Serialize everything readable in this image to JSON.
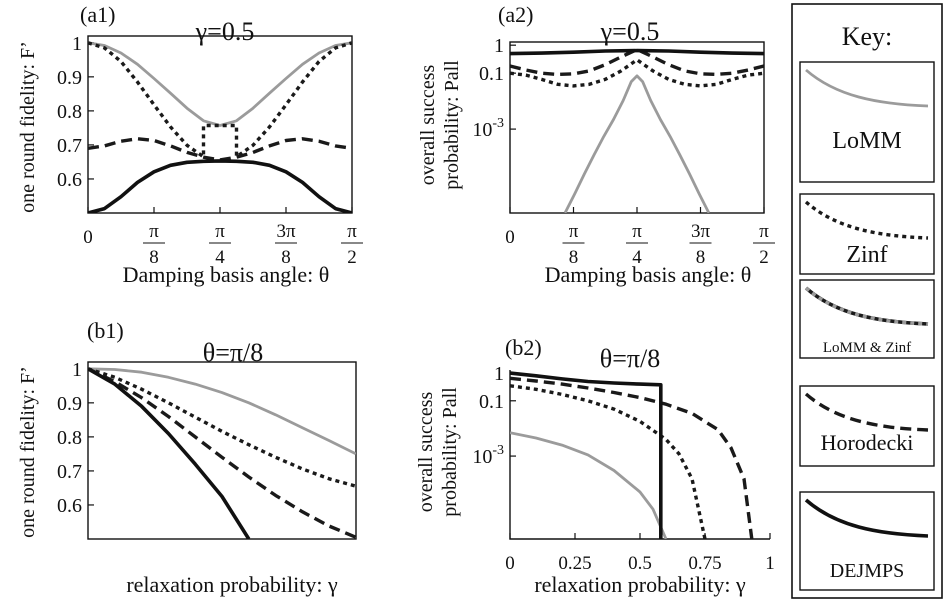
{
  "colors": {
    "LoMM": "#9b9b9b",
    "Zinf": "#1a1a1a",
    "Horodecki": "#1a1a1a",
    "DEJMPS": "#111111",
    "axis": "#111111"
  },
  "key": {
    "title": "Key:",
    "entries": [
      {
        "label": "LoMM",
        "style": "gray-solid"
      },
      {
        "label": "Zinf",
        "style": "dotted"
      },
      {
        "label": "LoMM & Zinf",
        "style": "gray-dotted"
      },
      {
        "label": "Horodecki",
        "style": "dashed"
      },
      {
        "label": "DEJMPS",
        "style": "black-solid"
      }
    ]
  },
  "chart_data": [
    {
      "panel": "(a1)",
      "type": "line",
      "title": "γ=0.5",
      "xlabel": "Damping basis angle: θ",
      "ylabel": "one round fidelity: F’",
      "xlim": [
        0,
        1.5708
      ],
      "ylim": [
        0.5,
        1.02
      ],
      "x_ticks": [
        {
          "v": 0,
          "num": "0",
          "den": ""
        },
        {
          "v": 0.3927,
          "num": "π",
          "den": "8"
        },
        {
          "v": 0.7854,
          "num": "π",
          "den": "4"
        },
        {
          "v": 1.1781,
          "num": "3π",
          "den": "8"
        },
        {
          "v": 1.5708,
          "num": "π",
          "den": "2"
        }
      ],
      "y_ticks": [
        {
          "v": 1,
          "label": "1"
        },
        {
          "v": 0.9,
          "label": "0.9"
        },
        {
          "v": 0.8,
          "label": "0.8"
        },
        {
          "v": 0.7,
          "label": "0.7"
        },
        {
          "v": 0.6,
          "label": "0.6"
        }
      ],
      "series": [
        {
          "name": "LoMM",
          "style": "gray-solid",
          "x": [
            0,
            0.0982,
            0.1963,
            0.2945,
            0.3927,
            0.4909,
            0.589,
            0.6872,
            0.7854,
            0.8836,
            0.9817,
            1.0799,
            1.1781,
            1.2763,
            1.3744,
            1.4726,
            1.5708
          ],
          "y": [
            1,
            0.992,
            0.97,
            0.937,
            0.895,
            0.852,
            0.808,
            0.771,
            0.757,
            0.771,
            0.808,
            0.852,
            0.895,
            0.937,
            0.97,
            0.992,
            1
          ]
        },
        {
          "name": "Zinf",
          "style": "dotted",
          "x": [
            0,
            0.0982,
            0.1963,
            0.2945,
            0.3927,
            0.4909,
            0.589,
            0.687,
            0.6872,
            0.7854,
            0.8836,
            0.8838,
            0.9817,
            1.0799,
            1.1781,
            1.2763,
            1.3744,
            1.4726,
            1.5708
          ],
          "y": [
            1,
            0.985,
            0.945,
            0.885,
            0.818,
            0.753,
            0.699,
            0.665,
            0.757,
            0.757,
            0.757,
            0.665,
            0.699,
            0.753,
            0.818,
            0.885,
            0.945,
            0.985,
            1
          ]
        },
        {
          "name": "Horodecki",
          "style": "dashed",
          "x": [
            0,
            0.0982,
            0.1963,
            0.2945,
            0.3927,
            0.4909,
            0.589,
            0.6872,
            0.7854,
            0.8836,
            0.9817,
            1.0799,
            1.1781,
            1.2763,
            1.3744,
            1.4726,
            1.5708
          ],
          "y": [
            0.69,
            0.697,
            0.711,
            0.718,
            0.713,
            0.697,
            0.678,
            0.664,
            0.656,
            0.664,
            0.678,
            0.697,
            0.713,
            0.718,
            0.711,
            0.697,
            0.69
          ]
        },
        {
          "name": "DEJMPS",
          "style": "black-solid",
          "x": [
            0,
            0.0982,
            0.1963,
            0.2945,
            0.3927,
            0.4909,
            0.589,
            0.6872,
            0.7854,
            0.8836,
            0.9817,
            1.0799,
            1.1781,
            1.2763,
            1.3744,
            1.4726,
            1.5708
          ],
          "y": [
            0.5,
            0.513,
            0.548,
            0.59,
            0.621,
            0.64,
            0.649,
            0.652,
            0.653,
            0.652,
            0.649,
            0.64,
            0.621,
            0.59,
            0.548,
            0.513,
            0.5
          ]
        }
      ]
    },
    {
      "panel": "(a2)",
      "type": "line",
      "title": "γ=0.5",
      "xlabel": "Damping basis angle: θ",
      "ylabel": "overall success probability: Pall",
      "ylabel_lines": [
        "overall success",
        "probability: Pall"
      ],
      "yscale": "log",
      "xlim": [
        0,
        1.5708
      ],
      "ylim": [
        1e-06,
        1.3
      ],
      "x_ticks": [
        {
          "v": 0,
          "num": "0",
          "den": ""
        },
        {
          "v": 0.3927,
          "num": "π",
          "den": "8"
        },
        {
          "v": 0.7854,
          "num": "π",
          "den": "4"
        },
        {
          "v": 1.1781,
          "num": "3π",
          "den": "8"
        },
        {
          "v": 1.5708,
          "num": "π",
          "den": "2"
        }
      ],
      "y_ticks": [
        {
          "v": 1,
          "label": "1",
          "sup": ""
        },
        {
          "v": 0.1,
          "label": "0.1",
          "sup": ""
        },
        {
          "v": 0.001,
          "label": "10",
          "sup": "-3"
        }
      ],
      "series": [
        {
          "name": "LoMM",
          "style": "gray-solid",
          "x": [
            0.34,
            0.4,
            0.46,
            0.52,
            0.58,
            0.64,
            0.7,
            0.75,
            0.7854,
            0.82,
            0.87,
            0.93,
            0.99,
            1.05,
            1.11,
            1.17,
            1.23
          ],
          "y": [
            1e-06,
            4.8e-06,
            2.5e-05,
            0.00012,
            0.00055,
            0.0022,
            0.0105,
            0.05,
            0.08,
            0.05,
            0.0105,
            0.0022,
            0.00055,
            0.00012,
            2.5e-05,
            4.8e-06,
            1e-06
          ]
        },
        {
          "name": "Zinf",
          "style": "dotted",
          "x": [
            0,
            0.0982,
            0.1963,
            0.2945,
            0.3927,
            0.4909,
            0.589,
            0.6872,
            0.7854,
            0.8836,
            0.9817,
            1.0799,
            1.1781,
            1.2763,
            1.3744,
            1.4726,
            1.5708
          ],
          "y": [
            0.1,
            0.085,
            0.06,
            0.04,
            0.035,
            0.04,
            0.06,
            0.12,
            0.3,
            0.12,
            0.06,
            0.04,
            0.035,
            0.04,
            0.06,
            0.085,
            0.1
          ]
        },
        {
          "name": "Horodecki",
          "style": "dashed",
          "x": [
            0,
            0.0982,
            0.1963,
            0.2945,
            0.3927,
            0.4909,
            0.589,
            0.6872,
            0.7854,
            0.8836,
            0.9817,
            1.0799,
            1.1781,
            1.2763,
            1.3744,
            1.4726,
            1.5708
          ],
          "y": [
            0.18,
            0.13,
            0.1,
            0.09,
            0.095,
            0.12,
            0.2,
            0.38,
            0.7,
            0.38,
            0.2,
            0.12,
            0.095,
            0.09,
            0.1,
            0.13,
            0.18
          ]
        },
        {
          "name": "DEJMPS",
          "style": "black-solid",
          "x": [
            0,
            0.1963,
            0.3927,
            0.589,
            0.7854,
            0.9817,
            1.1781,
            1.3744,
            1.5708
          ],
          "y": [
            0.5,
            0.52,
            0.56,
            0.62,
            0.64,
            0.62,
            0.56,
            0.52,
            0.5
          ]
        }
      ]
    },
    {
      "panel": "(b1)",
      "type": "line",
      "title": "θ=π/8",
      "xlabel": "relaxation probability: γ",
      "ylabel": "one round fidelity: F’",
      "xlim": [
        0,
        1
      ],
      "ylim": [
        0.5,
        1.02
      ],
      "x_ticks": [],
      "y_ticks": [
        {
          "v": 1,
          "label": "1"
        },
        {
          "v": 0.9,
          "label": "0.9"
        },
        {
          "v": 0.8,
          "label": "0.8"
        },
        {
          "v": 0.7,
          "label": "0.7"
        },
        {
          "v": 0.6,
          "label": "0.6"
        }
      ],
      "series": [
        {
          "name": "LoMM",
          "style": "gray-solid",
          "x": [
            0,
            0.1,
            0.2,
            0.3,
            0.4,
            0.5,
            0.6,
            0.7,
            0.8,
            0.9,
            1
          ],
          "y": [
            1,
            0.998,
            0.99,
            0.975,
            0.955,
            0.93,
            0.9,
            0.865,
            0.827,
            0.789,
            0.75
          ]
        },
        {
          "name": "Zinf",
          "style": "dotted",
          "x": [
            0,
            0.1,
            0.2,
            0.3,
            0.4,
            0.5,
            0.6,
            0.7,
            0.8,
            0.9,
            1
          ],
          "y": [
            1,
            0.975,
            0.94,
            0.9,
            0.858,
            0.816,
            0.777,
            0.74,
            0.706,
            0.677,
            0.655
          ]
        },
        {
          "name": "Horodecki",
          "style": "dashed",
          "x": [
            0,
            0.1,
            0.2,
            0.3,
            0.4,
            0.5,
            0.6,
            0.7,
            0.8,
            0.9,
            1
          ],
          "y": [
            1,
            0.962,
            0.915,
            0.86,
            0.8,
            0.74,
            0.682,
            0.628,
            0.58,
            0.538,
            0.505
          ]
        },
        {
          "name": "DEJMPS",
          "style": "black-solid",
          "x": [
            0,
            0.1,
            0.2,
            0.3,
            0.4,
            0.5,
            0.6
          ],
          "y": [
            1,
            0.955,
            0.89,
            0.81,
            0.72,
            0.625,
            0.5
          ]
        }
      ]
    },
    {
      "panel": "(b2)",
      "type": "line",
      "title": "θ=π/8",
      "xlabel": "relaxation probability: γ",
      "ylabel": "overall success probability: Pall",
      "ylabel_lines": [
        "overall success",
        "probability: Pall"
      ],
      "yscale": "log",
      "xlim": [
        0,
        1
      ],
      "ylim": [
        1e-06,
        1.3
      ],
      "x_ticks": [
        {
          "v": 0,
          "num": "0",
          "den": ""
        },
        {
          "v": 0.25,
          "num": "0.25",
          "den": ""
        },
        {
          "v": 0.5,
          "num": "0.5",
          "den": ""
        },
        {
          "v": 0.75,
          "num": "0.75",
          "den": ""
        },
        {
          "v": 1,
          "num": "1",
          "den": ""
        }
      ],
      "y_ticks": [
        {
          "v": 1,
          "label": "1",
          "sup": ""
        },
        {
          "v": 0.1,
          "label": "0.1",
          "sup": ""
        },
        {
          "v": 0.001,
          "label": "10",
          "sup": "-3"
        }
      ],
      "series": [
        {
          "name": "LoMM",
          "style": "gray-solid",
          "x": [
            0,
            0.1,
            0.2,
            0.3,
            0.4,
            0.5,
            0.55,
            0.6
          ],
          "y": [
            0.007,
            0.0045,
            0.0025,
            0.0011,
            0.0003,
            5e-05,
            1.2e-05,
            1e-06
          ]
        },
        {
          "name": "Zinf",
          "style": "dotted",
          "x": [
            0,
            0.1,
            0.2,
            0.3,
            0.4,
            0.5,
            0.6,
            0.65,
            0.7,
            0.75
          ],
          "y": [
            0.35,
            0.26,
            0.17,
            0.1,
            0.05,
            0.018,
            0.004,
            0.0012,
            0.00015,
            1e-06
          ]
        },
        {
          "name": "Horodecki",
          "style": "dashed",
          "x": [
            0,
            0.1,
            0.2,
            0.3,
            0.4,
            0.5,
            0.6,
            0.7,
            0.8,
            0.85,
            0.9,
            0.93
          ],
          "y": [
            0.65,
            0.52,
            0.4,
            0.29,
            0.2,
            0.13,
            0.075,
            0.035,
            0.009,
            0.002,
            0.00015,
            1e-06
          ]
        },
        {
          "name": "DEJMPS",
          "style": "black-solid",
          "x": [
            0,
            0.1,
            0.2,
            0.3,
            0.4,
            0.5,
            0.58,
            0.58
          ],
          "y": [
            1,
            0.8,
            0.62,
            0.5,
            0.44,
            0.4,
            0.38,
            1e-06
          ]
        }
      ]
    }
  ]
}
